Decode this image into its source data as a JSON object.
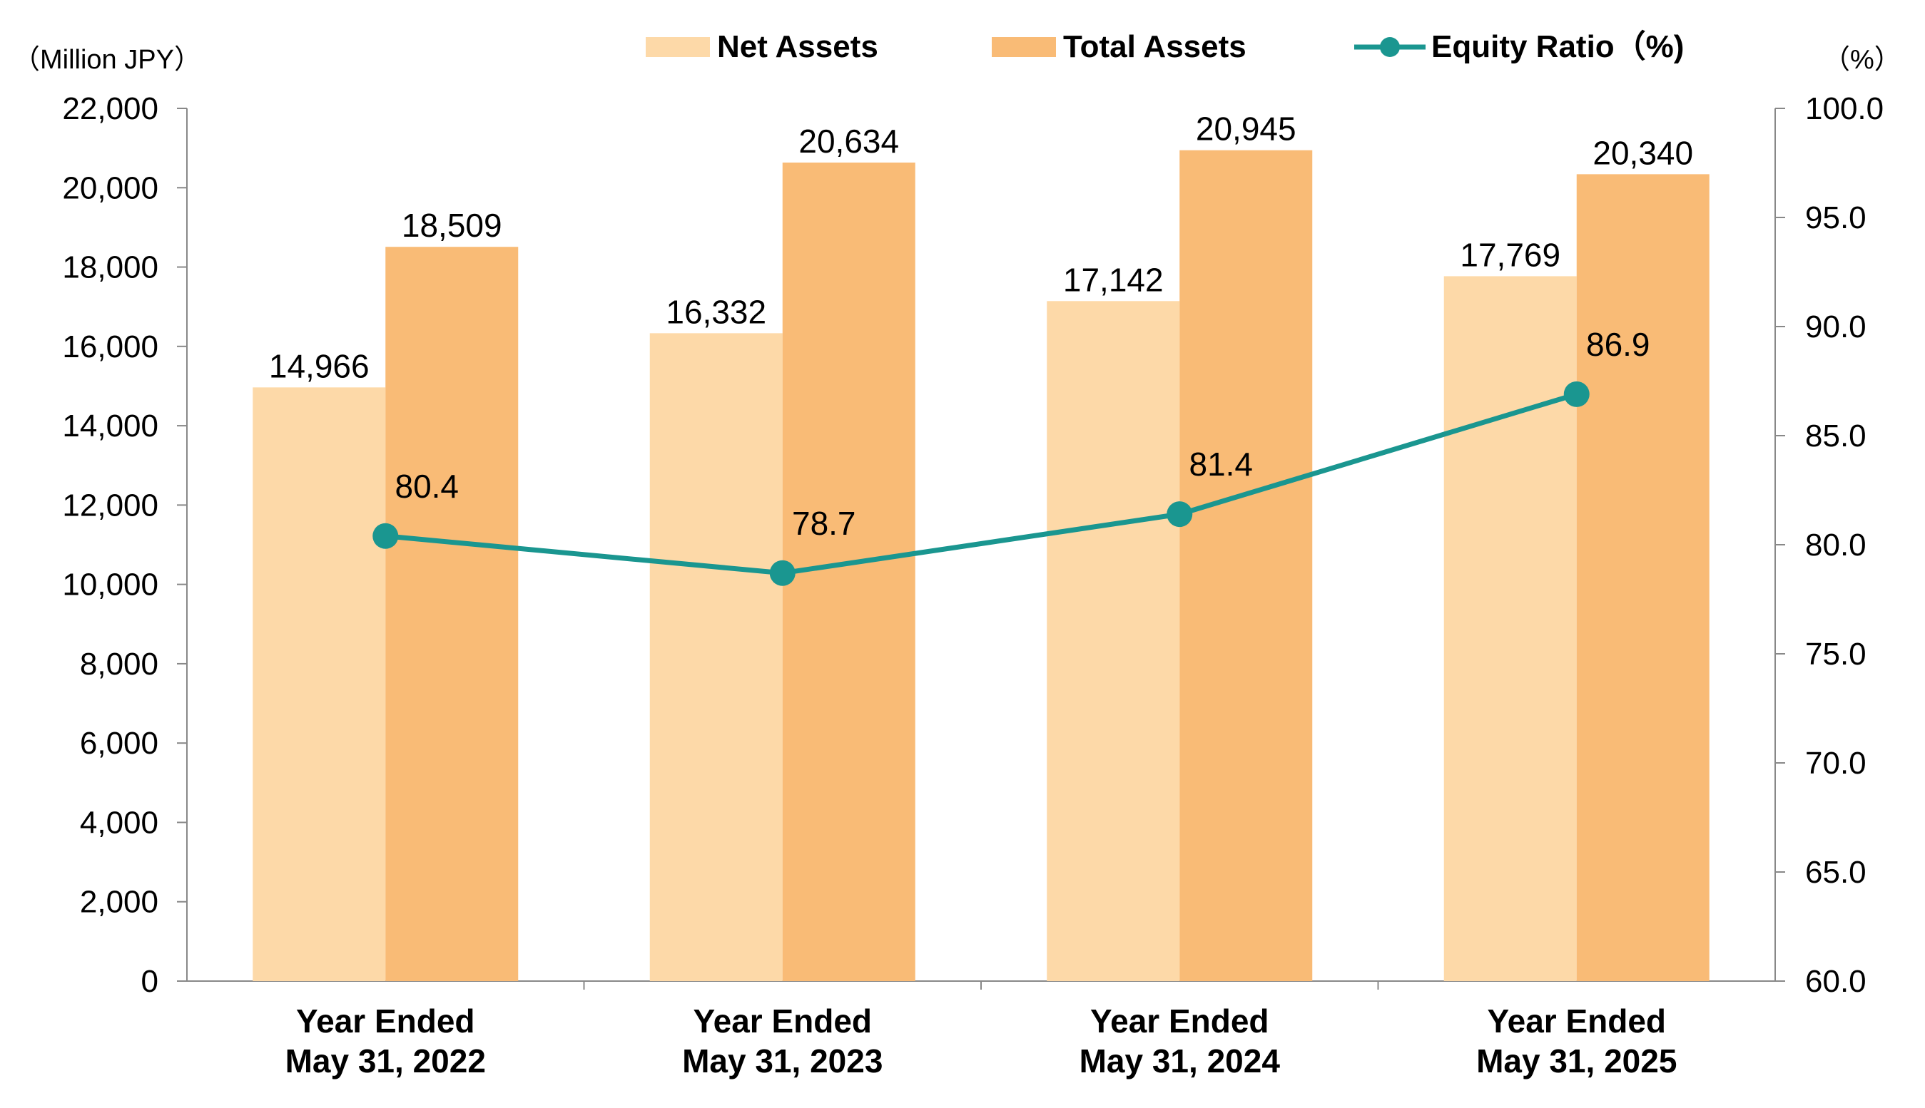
{
  "chart_data": {
    "type": "bar",
    "categories": [
      [
        "Year Ended",
        "May 31, 2022"
      ],
      [
        "Year Ended",
        "May 31, 2023"
      ],
      [
        "Year Ended",
        "May 31, 2024"
      ],
      [
        "Year Ended",
        "May 31, 2025"
      ]
    ],
    "series": [
      {
        "name": "Net Assets",
        "type": "bar",
        "axis": "left",
        "color": "#fdd9a8",
        "values": [
          14966,
          16332,
          17142,
          17769
        ],
        "labels": [
          "14,966",
          "16,332",
          "17,142",
          "17,769"
        ]
      },
      {
        "name": "Total Assets",
        "type": "bar",
        "axis": "left",
        "color": "#f9bb76",
        "values": [
          18509,
          20634,
          20945,
          20340
        ],
        "labels": [
          "18,509",
          "20,634",
          "20,945",
          "20,340"
        ]
      },
      {
        "name": "Equity Ratio（%)",
        "type": "line",
        "axis": "right",
        "color": "#1a9690",
        "values": [
          80.4,
          78.7,
          81.4,
          86.9
        ],
        "labels": [
          "80.4",
          "78.7",
          "81.4",
          "86.9"
        ]
      }
    ],
    "left_axis": {
      "unit": "（Million JPY）",
      "ylim": [
        0,
        22000
      ],
      "ticks": [
        0,
        2000,
        4000,
        6000,
        8000,
        10000,
        12000,
        14000,
        16000,
        18000,
        20000,
        22000
      ],
      "tick_labels": [
        "0",
        "2,000",
        "4,000",
        "6,000",
        "8,000",
        "10,000",
        "12,000",
        "14,000",
        "16,000",
        "18,000",
        "20,000",
        "22,000"
      ]
    },
    "right_axis": {
      "unit": "（%）",
      "ylim": [
        60,
        100
      ],
      "ticks": [
        60,
        65,
        70,
        75,
        80,
        85,
        90,
        95,
        100
      ],
      "tick_labels": [
        "60.0",
        "65.0",
        "70.0",
        "75.0",
        "80.0",
        "85.0",
        "90.0",
        "95.0",
        "100.0"
      ]
    },
    "grid": false,
    "legend_position": "top"
  }
}
